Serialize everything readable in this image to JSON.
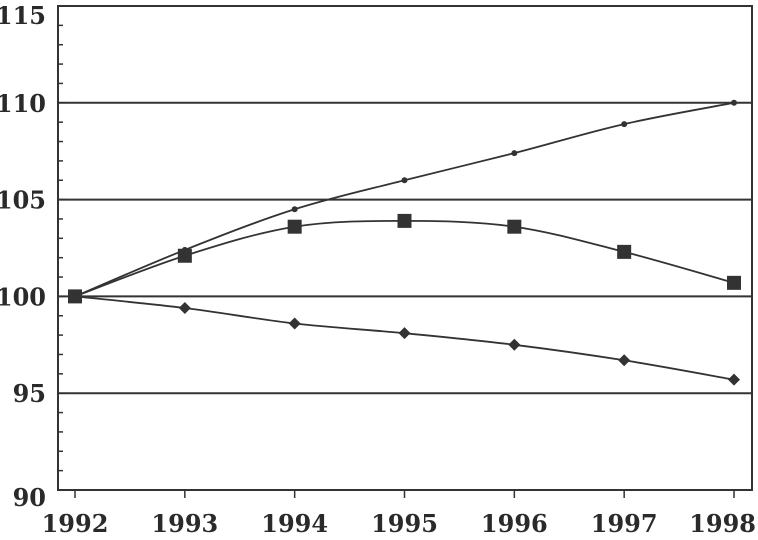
{
  "chart_data": {
    "type": "line",
    "x": [
      "1992",
      "1993",
      "1994",
      "1995",
      "1996",
      "1997",
      "1998"
    ],
    "ylim": [
      90,
      115
    ],
    "yticks": [
      "90",
      "95",
      "100",
      "105",
      "110",
      "115"
    ],
    "grid": "horizontal major lines at 95, 100, 105, 110",
    "series": [
      {
        "marker": "dot",
        "color": "#333333",
        "values": [
          100,
          102.4,
          104.5,
          106.0,
          107.4,
          108.9,
          110.0
        ]
      },
      {
        "marker": "square",
        "color": "#333333",
        "values": [
          100,
          102.1,
          103.6,
          103.9,
          103.6,
          102.3,
          100.7
        ]
      },
      {
        "marker": "diamond",
        "color": "#333333",
        "values": [
          100,
          99.4,
          98.6,
          98.1,
          97.5,
          96.7,
          95.7
        ]
      }
    ]
  }
}
